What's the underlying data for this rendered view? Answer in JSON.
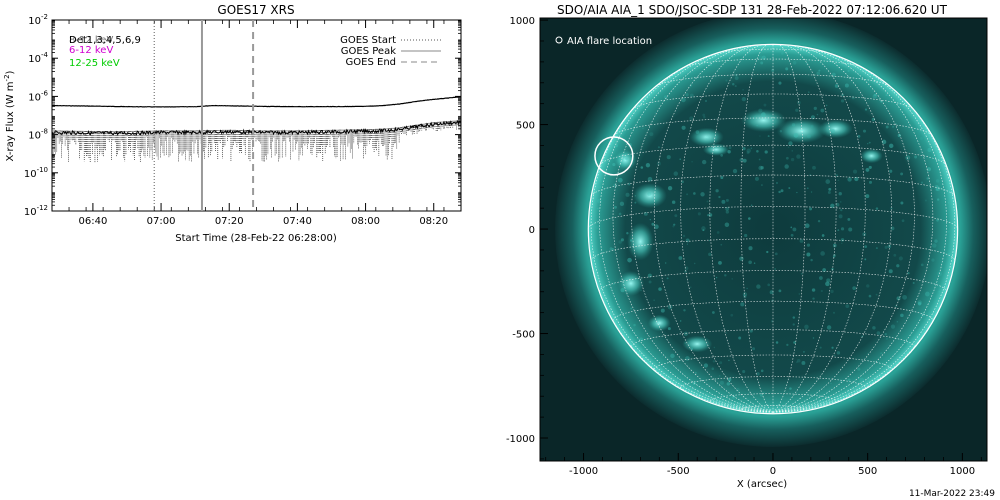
{
  "footer": {
    "timestamp": "11-Mar-2022 23:49"
  },
  "chart_data": [
    {
      "type": "line",
      "title": "GOES17 XRS",
      "xlabel": "Start Time (28-Feb-22 06:28:00)",
      "ylabel": "X-ray Flux (W m^-2)",
      "ylabel_parts": {
        "main": "X-ray Flux (W m",
        "exp": "-2",
        "close": ")"
      },
      "yscale": "log",
      "ylim": [
        1e-12,
        0.01
      ],
      "y_ticks": [
        {
          "value": 0.01,
          "base": "10",
          "exp": "-2"
        },
        {
          "value": 0.0001,
          "base": "10",
          "exp": "-4"
        },
        {
          "value": 1e-06,
          "base": "10",
          "exp": "-6"
        },
        {
          "value": 1e-08,
          "base": "10",
          "exp": "-8"
        },
        {
          "value": 1e-10,
          "base": "10",
          "exp": "-10"
        },
        {
          "value": 1e-12,
          "base": "10",
          "exp": "-12"
        }
      ],
      "x_ticks": [
        "06:40",
        "07:00",
        "07:20",
        "07:40",
        "08:00",
        "08:20"
      ],
      "xlim": [
        "06:28",
        "08:28"
      ],
      "legend_left": [
        {
          "label": "Det1,3,4,5,6,9",
          "overlay": "8-12 keV",
          "color": "#000000"
        },
        {
          "label": "6-12 keV",
          "color": "#d000d0"
        },
        {
          "label": "12-25 keV",
          "color": "#00cc00"
        }
      ],
      "legend_right": [
        {
          "label": "GOES Start",
          "style": "dotted",
          "time": "06:58"
        },
        {
          "label": "GOES Peak",
          "style": "solid",
          "time": "07:12"
        },
        {
          "label": "GOES End",
          "style": "dashed",
          "time": "07:27"
        }
      ],
      "series": [
        {
          "x": [
            "06:28",
            "06:40",
            "06:50",
            "07:00",
            "07:10",
            "07:15",
            "07:20",
            "07:30",
            "07:40",
            "07:50",
            "08:00",
            "08:05",
            "08:10",
            "08:15",
            "08:20",
            "08:28"
          ],
          "values": [
            3.3e-07,
            3.1e-07,
            2.9e-07,
            2.8e-07,
            2.9e-07,
            3.3e-07,
            3.2e-07,
            3e-07,
            2.9e-07,
            2.9e-07,
            3e-07,
            3.3e-07,
            4e-07,
            5.5e-07,
            7e-07,
            9.5e-07
          ]
        },
        {
          "x": [
            "06:28",
            "06:40",
            "06:50",
            "07:00",
            "07:10",
            "07:20",
            "07:30",
            "07:40",
            "07:50",
            "08:00",
            "08:05",
            "08:10",
            "08:15",
            "08:20",
            "08:28"
          ],
          "values": [
            1.3e-08,
            1.2e-08,
            1.2e-08,
            1.3e-08,
            1.3e-08,
            1.4e-08,
            1.3e-08,
            1.3e-08,
            1.4e-08,
            1.5e-08,
            1.6e-08,
            1.9e-08,
            2.6e-08,
            3.5e-08,
            4.5e-08
          ]
        }
      ]
    },
    {
      "type": "heatmap",
      "title": "SDO/AIA AIA_1 SDO/JSOC-SDP 131 28-Feb-2022 07:12:06.620 UT",
      "xlabel": "X (arcsec)",
      "x_ticks": [
        -1000,
        -500,
        0,
        500,
        1000
      ],
      "y_ticks": [
        1000,
        500,
        0,
        -500,
        -1000
      ],
      "xlim": [
        -1230,
        1130
      ],
      "ylim": [
        -1110,
        1010
      ],
      "legend": [
        {
          "label": "AIA flare location",
          "marker": "circle"
        }
      ],
      "flare_location": {
        "x": -840,
        "y": 350
      },
      "solar_radius_arcsec": 975,
      "colors": {
        "disk": "#0d3a3c",
        "bright": "#7ffff8",
        "corona": "#2fb0a6",
        "grid": "#ffffff"
      }
    }
  ]
}
